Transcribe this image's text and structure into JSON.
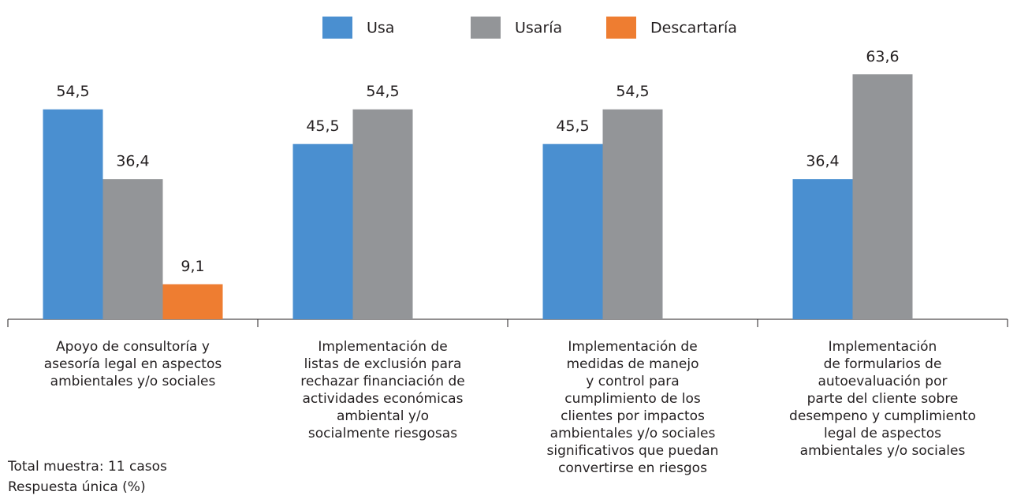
{
  "chart_data": {
    "type": "bar",
    "categories": [
      [
        "Apoyo de consultoría y",
        "asesoría legal en aspectos",
        "ambientales y/o sociales"
      ],
      [
        "Implementación de",
        "listas de exclusión para",
        "rechazar financiación de",
        "actividades económicas",
        "ambiental y/o",
        "socialmente riesgosas"
      ],
      [
        "Implementación de",
        "medidas de manejo",
        "y control para",
        "cumplimiento de los",
        "clientes por impactos",
        "ambientales y/o sociales",
        "significativos que puedan",
        "convertirse en riesgos"
      ],
      [
        "Implementación",
        "de formularios de",
        "autoevaluación por",
        "parte del cliente sobre",
        "desempeno y cumplimiento",
        "legal de aspectos",
        "ambientales y/o sociales"
      ]
    ],
    "series": [
      {
        "name": "Usa",
        "color": "#4a8fd0",
        "values": [
          54.5,
          45.5,
          45.5,
          36.4
        ],
        "value_labels": [
          "54,5",
          "45,5",
          "45,5",
          "36,4"
        ]
      },
      {
        "name": "Usaría",
        "color": "#939598",
        "values": [
          36.4,
          54.5,
          54.5,
          63.6
        ],
        "value_labels": [
          "36,4",
          "54,5",
          "54,5",
          "63,6"
        ]
      },
      {
        "name": "Descartaría",
        "color": "#ee7d31",
        "values": [
          9.1,
          null,
          null,
          null
        ],
        "value_labels": [
          "9,1",
          null,
          null,
          null
        ]
      }
    ],
    "ylim": [
      0,
      70
    ],
    "notes": [
      "Total muestra: 11 casos",
      "Respuesta única (%)"
    ]
  }
}
